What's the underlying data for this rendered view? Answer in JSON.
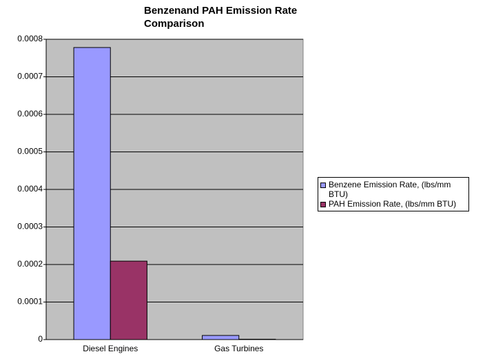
{
  "chart_data": {
    "type": "bar",
    "title": "Benzenand PAH Emission Rate Comparison",
    "categories": [
      "Diesel Engines",
      "Gas Turbines"
    ],
    "series": [
      {
        "name": "Benzene Emission Rate, (lbs/mm BTU)",
        "color": "#9999ff",
        "values": [
          0.000778,
          1.1e-05
        ]
      },
      {
        "name": "PAH Emission Rate, (lbs/mm BTU)",
        "color": "#993366",
        "values": [
          0.000209,
          1e-06
        ]
      }
    ],
    "ylim": [
      0,
      0.0008
    ],
    "yticks": [
      0,
      0.0001,
      0.0002,
      0.0003,
      0.0004,
      0.0005,
      0.0006,
      0.0007,
      0.0008
    ],
    "grid": true,
    "legend": "right",
    "plot_background": "#c0c0c0"
  }
}
